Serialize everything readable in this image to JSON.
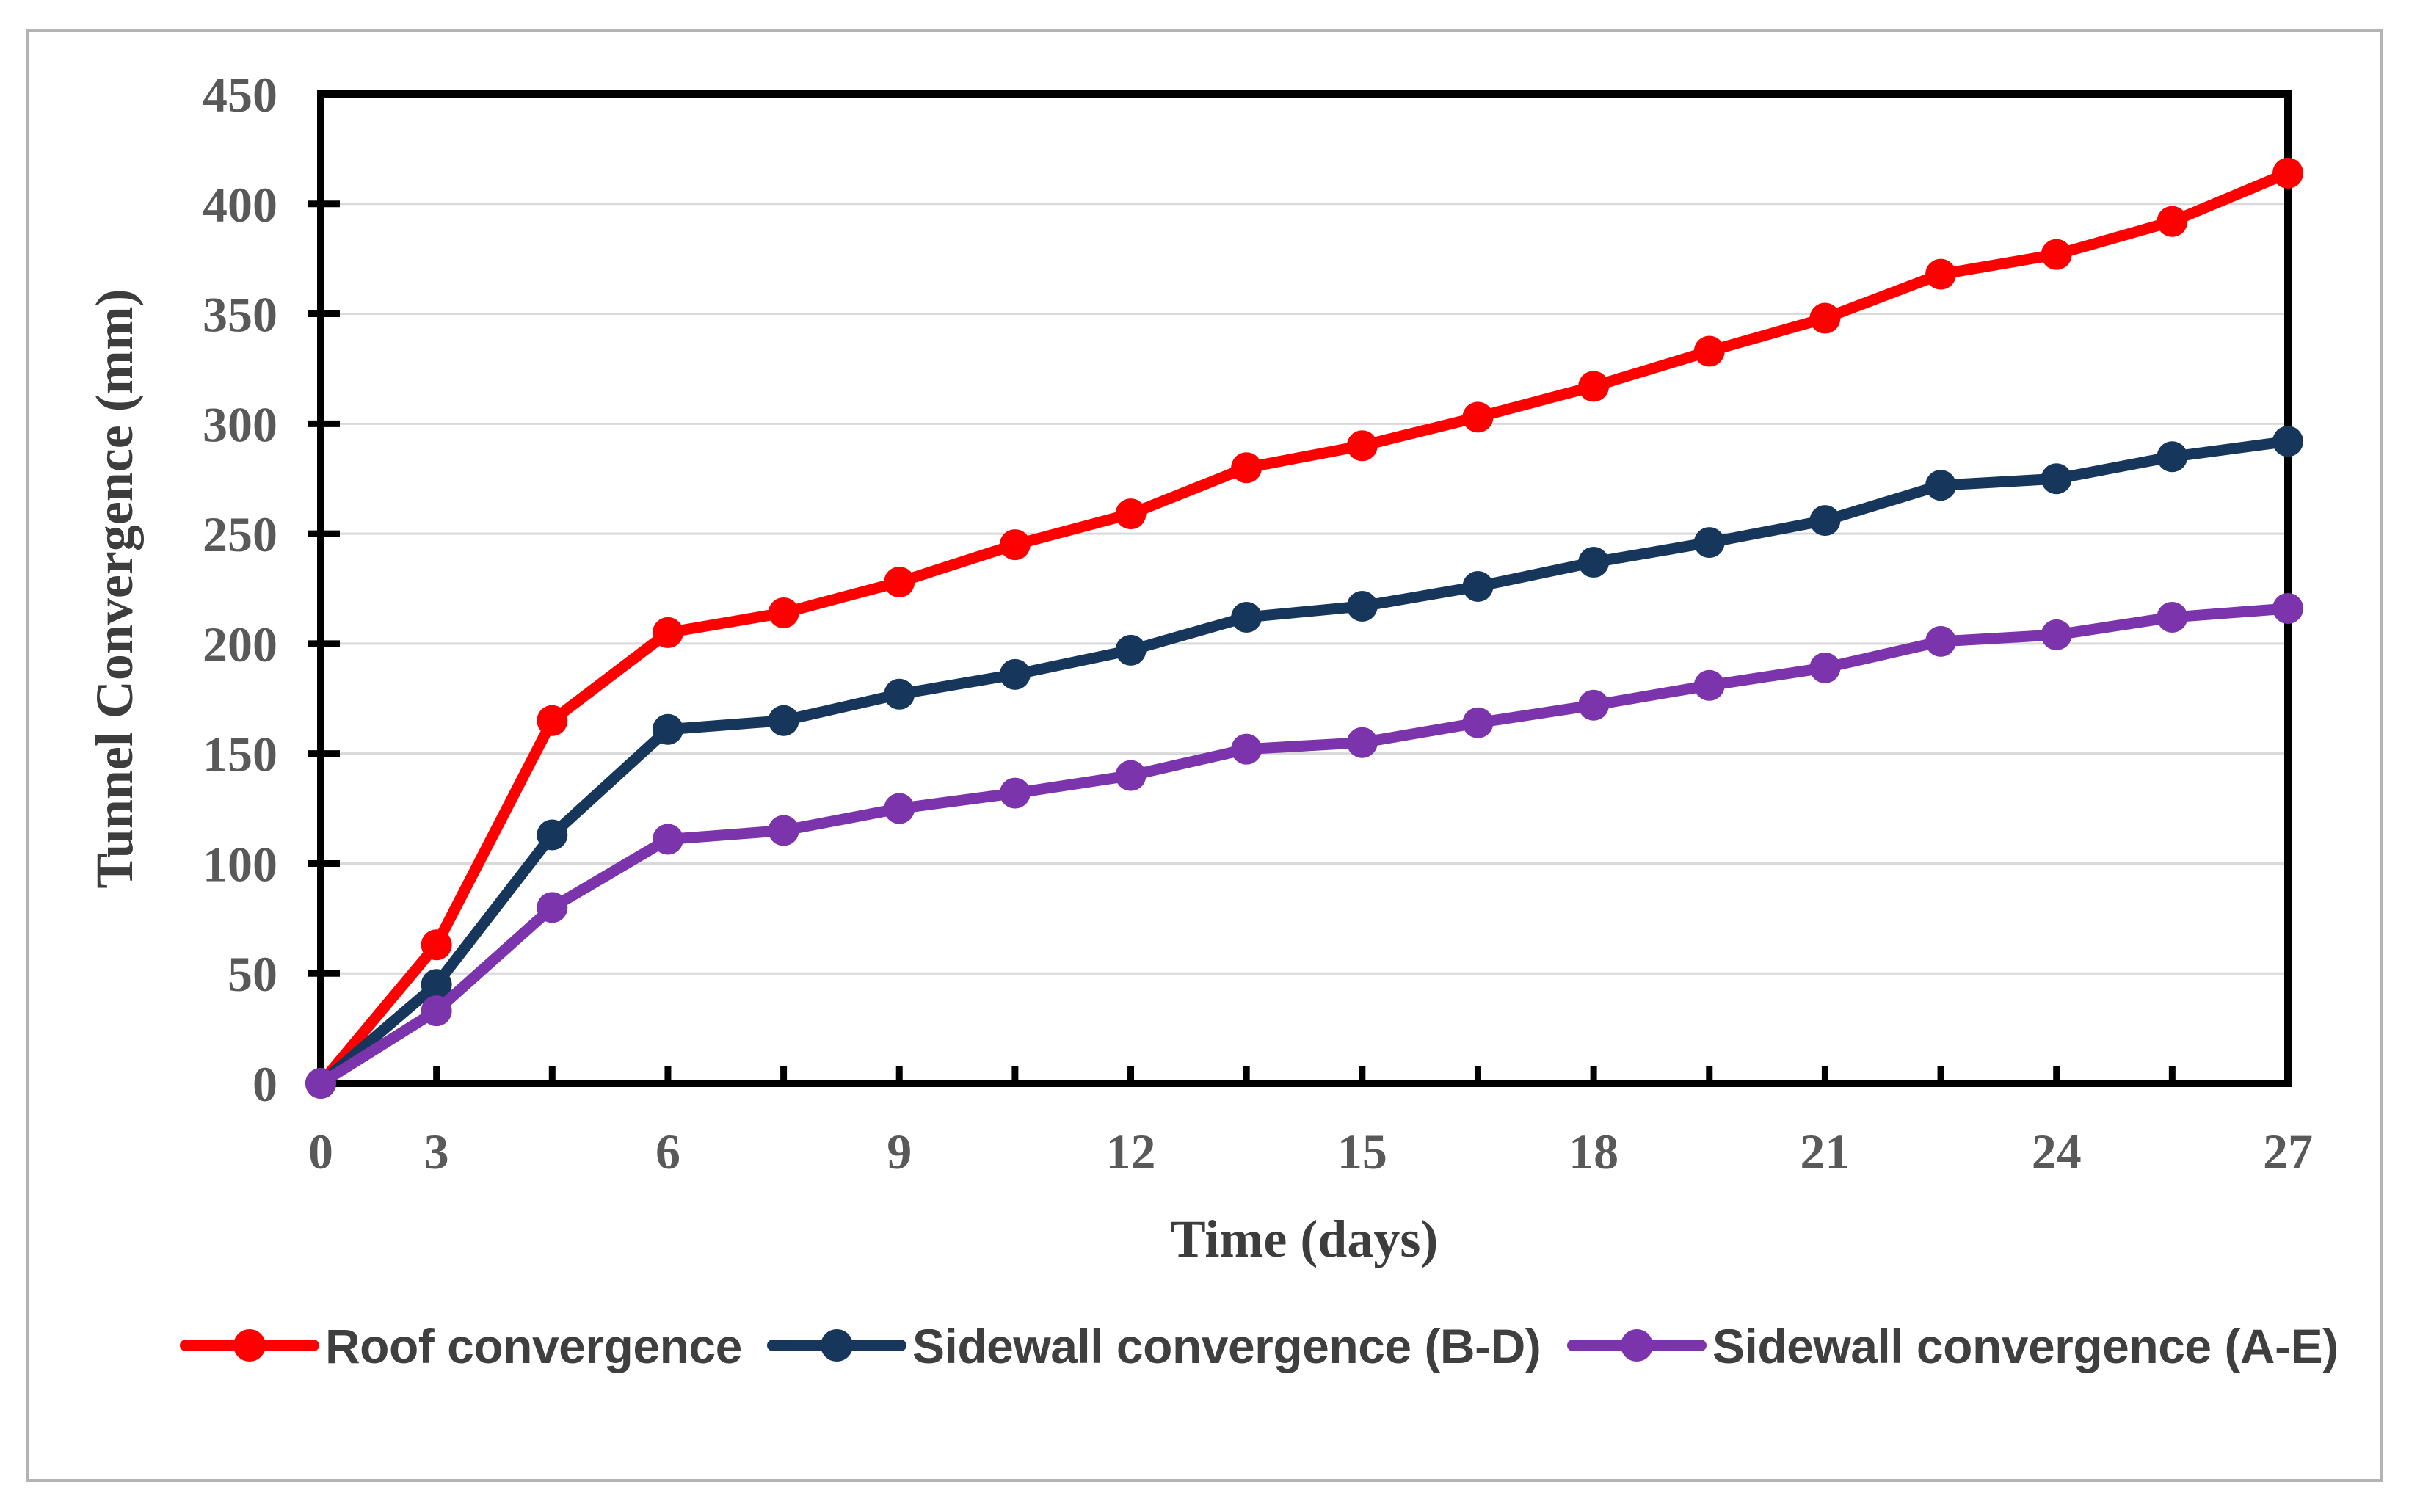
{
  "figure": {
    "background_color": "#ffffff",
    "border_color": "#b3b3b3",
    "axis_color": "#000000",
    "gridline_color": "#d9d9d9",
    "tick_label_color": "#595959",
    "axis_title_color": "#3d3d3d",
    "legend_text_color": "#3f3f3f"
  },
  "chart_data": {
    "type": "line",
    "title": "",
    "xlabel": "Time (days)",
    "ylabel": "Tunnel Convergence (mm)",
    "x_axis_type": "category",
    "categories": [
      0,
      3,
      4.5,
      6,
      7.5,
      9,
      10.5,
      12,
      13.5,
      15,
      16.5,
      18,
      19.5,
      21,
      22.5,
      24,
      25.5,
      27
    ],
    "x_tick_labels": [
      "0",
      "3",
      "6",
      "9",
      "12",
      "15",
      "18",
      "21",
      "24",
      "27"
    ],
    "x_tick_label_category_index": [
      0,
      1,
      3,
      5,
      7,
      9,
      11,
      13,
      15,
      17
    ],
    "ylim": [
      0,
      450
    ],
    "y_tick_step": 50,
    "y_tick_labels": [
      "0",
      "50",
      "100",
      "150",
      "200",
      "250",
      "300",
      "350",
      "400",
      "450"
    ],
    "grid": "horizontal",
    "legend_position": "bottom",
    "marker": "circle",
    "series": [
      {
        "name": "Roof convergence",
        "color": "#fe0000",
        "values": [
          0,
          63,
          165,
          205,
          214,
          228,
          245,
          259,
          280,
          290,
          303,
          317,
          333,
          348,
          368,
          377,
          392,
          414
        ]
      },
      {
        "name": "Sidewall convergence (B-D)",
        "color": "#16365c",
        "values": [
          0,
          45,
          113,
          161,
          165,
          177,
          186,
          197,
          212,
          217,
          226,
          237,
          246,
          256,
          272,
          275,
          285,
          292
        ]
      },
      {
        "name": "Sidewall convergence (A-E)",
        "color": "#7b34ab",
        "values": [
          0,
          33,
          80,
          111,
          115,
          125,
          132,
          140,
          152,
          155,
          164,
          172,
          181,
          189,
          201,
          204,
          212,
          216
        ]
      }
    ]
  }
}
